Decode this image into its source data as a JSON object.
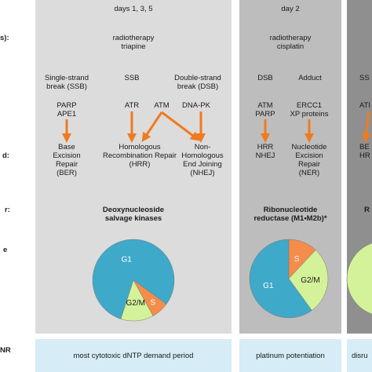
{
  "row_labels": {
    "schedule": "s):",
    "repair": "d:",
    "enzyme": "r:",
    "cycle": "e",
    "rnr": "NR"
  },
  "panel1": {
    "days": "days 1, 3, 5",
    "treatment": [
      "radiotherapy",
      "triapine"
    ],
    "damage_ssb": [
      "Single-strand",
      "break (SSB)"
    ],
    "damage_ssb2": "SSB",
    "damage_dsb": [
      "Double-strand",
      "break (DSB)"
    ],
    "sensor_parp": [
      "PARP",
      "APE1"
    ],
    "sensor_atr": "ATR",
    "sensor_atm": "ATM",
    "sensor_dnapk": "DNA-PK",
    "repair_ber": [
      "Base",
      "Excision",
      "Repair",
      "(BER)"
    ],
    "repair_hrr": [
      "Homologous",
      "Recombination Repair",
      "(HRR)"
    ],
    "repair_nhej": [
      "Non-",
      "Homologous",
      "End Joining",
      "(NHEJ)"
    ],
    "enzyme": [
      "Deoxynucleoside",
      "salvage kinases"
    ],
    "pie_labels": {
      "g1": "G1",
      "g2m": "G2/M",
      "s": "S"
    },
    "bottom": "most cytotoxic dNTP demand period"
  },
  "panel2": {
    "days": "day 2",
    "treatment": [
      "radiotherapy",
      "cisplatin"
    ],
    "damage_dsb": "DSB",
    "damage_adduct": "Adduct",
    "sensor_atm": [
      "ATM",
      "PARP"
    ],
    "sensor_ercc1": [
      "ERCC1",
      "XP proteins"
    ],
    "repair_hrr": [
      "HRR",
      "NHEJ"
    ],
    "repair_ner": [
      "Nucleotide",
      "Excision",
      "Repair",
      "(NER)"
    ],
    "enzyme": [
      "Ribonucleotide",
      "reductase (M1•M2b)*"
    ],
    "pie_labels": {
      "g1": "G1",
      "g2m": "G2/M",
      "s": "S"
    },
    "bottom": "platinum potentiation"
  },
  "panel3": {
    "damage": "SS",
    "sensor": "ATI",
    "repair": [
      "BE",
      "HR"
    ],
    "enzyme": "R",
    "bottom": "disru"
  },
  "colors": {
    "panel1": "#dcdcdc",
    "panel2": "#bdbdbd",
    "panel3": "#8f8f8f",
    "arrow": "#f07a1f",
    "bottom_bar": "#d6ecf6",
    "g1": "#3fa9c9",
    "g2m": "#d3f29a",
    "s": "#f48c4a"
  },
  "chart_data": [
    {
      "type": "pie",
      "categories": [
        "G1",
        "G2/M",
        "S"
      ],
      "values": [
        80,
        13,
        7
      ]
    },
    {
      "type": "pie",
      "categories": [
        "G1",
        "G2/M",
        "S"
      ],
      "values": [
        60,
        28,
        12
      ]
    }
  ]
}
